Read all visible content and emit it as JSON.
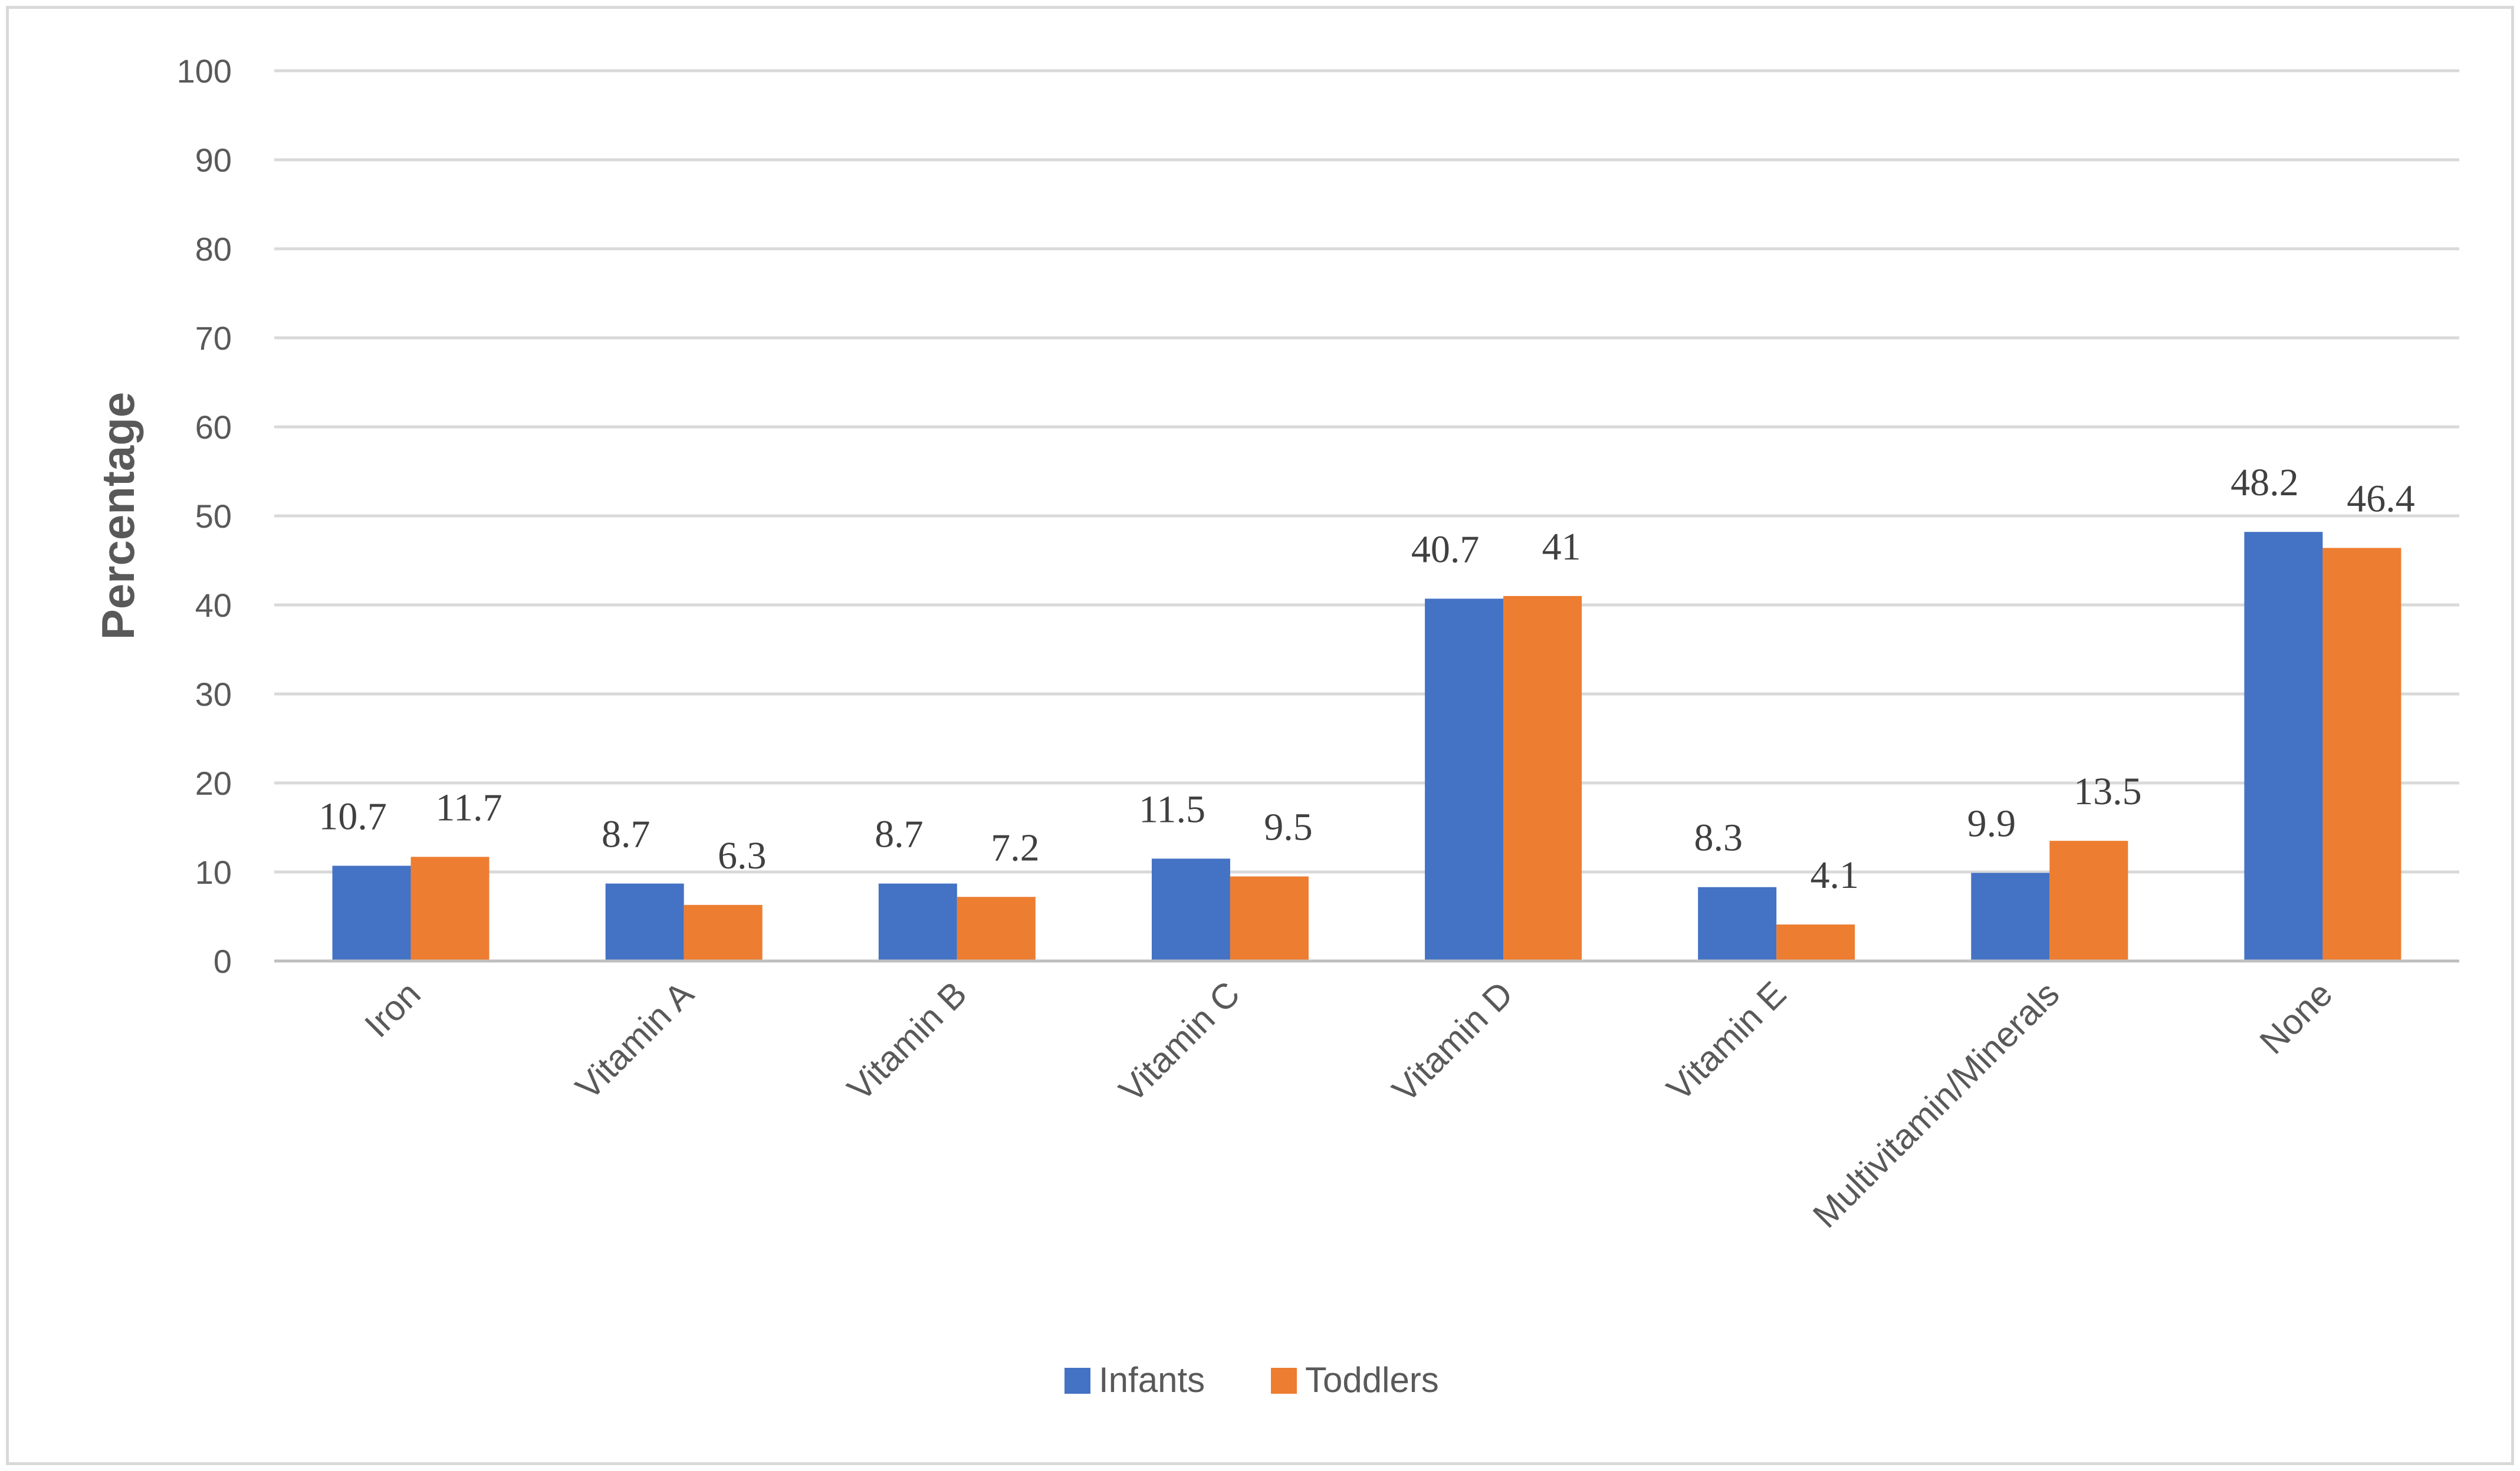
{
  "chart_data": {
    "type": "bar",
    "title": "",
    "xlabel": "",
    "ylabel": "Percentage",
    "ylim": [
      0,
      100
    ],
    "yticks": [
      0,
      10,
      20,
      30,
      40,
      50,
      60,
      70,
      80,
      90,
      100
    ],
    "grid": true,
    "legend_position": "bottom",
    "categories": [
      "Iron",
      "Vitamin A",
      "Vitamin B",
      "Vitamin C",
      "Vitamin D",
      "Vitamin E",
      "Multivitamin/Minerals",
      "None"
    ],
    "series": [
      {
        "name": "Infants",
        "color": "#4472c4",
        "values": [
          10.7,
          8.7,
          8.7,
          11.5,
          40.7,
          8.3,
          9.9,
          48.2
        ]
      },
      {
        "name": "Toddlers",
        "color": "#ed7d31",
        "values": [
          11.7,
          6.3,
          7.2,
          9.5,
          41,
          4.1,
          13.5,
          46.4
        ]
      }
    ]
  }
}
